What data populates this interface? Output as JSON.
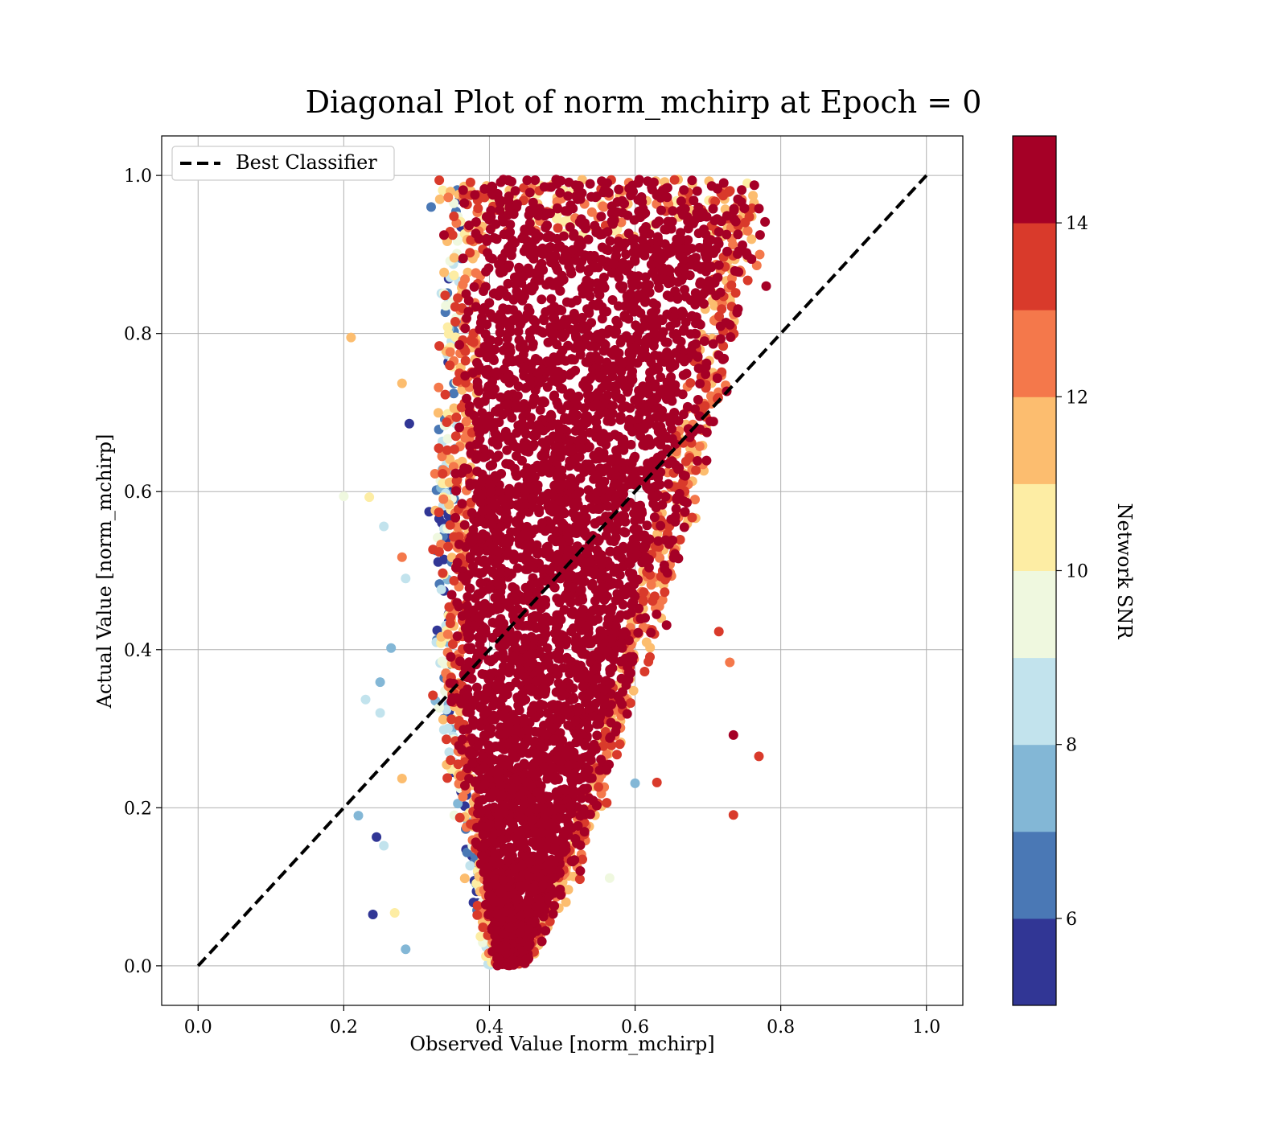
{
  "chart_data": {
    "type": "scatter",
    "title": "Diagonal Plot of norm_mchirp at Epoch = 0",
    "xlabel": "Observed Value [norm_mchirp]",
    "ylabel": "Actual Value [norm_mchirp]",
    "xlim": [
      -0.05,
      1.05
    ],
    "ylim": [
      -0.05,
      1.05
    ],
    "x_ticks": [
      "0.0",
      "0.2",
      "0.4",
      "0.6",
      "0.8",
      "1.0"
    ],
    "y_ticks": [
      "0.0",
      "0.2",
      "0.4",
      "0.6",
      "0.8",
      "1.0"
    ],
    "grid": true,
    "legend": {
      "placement": "top-left",
      "entries": [
        "Best Classifier"
      ]
    },
    "reference_line": {
      "name": "Best Classifier",
      "style": "dashed",
      "color": "#000000",
      "x": [
        0.0,
        1.0
      ],
      "y": [
        0.0,
        1.0
      ]
    },
    "colorbar": {
      "label": "Network SNR",
      "range": [
        5,
        15
      ],
      "ticks": [
        "6",
        "8",
        "10",
        "12",
        "14"
      ],
      "colormap": "RdYlBu_r (discrete, 10 levels)",
      "colors": [
        "#313695",
        "#4a78b5",
        "#83b7d6",
        "#c2e3ed",
        "#eff8df",
        "#fdeda4",
        "#fcbd6f",
        "#f4784b",
        "#d93a2b",
        "#a50026"
      ]
    },
    "point_cloud_summary": {
      "description_of_extent": "dense cloud",
      "x_range": [
        0.2,
        0.78
      ],
      "y_range": [
        0.0,
        1.0
      ]
    },
    "sample_points": [
      {
        "x": 0.32,
        "y": 0.96,
        "snr": 6.5
      },
      {
        "x": 0.21,
        "y": 0.795,
        "snr": 11.5
      },
      {
        "x": 0.28,
        "y": 0.737,
        "snr": 11.5
      },
      {
        "x": 0.29,
        "y": 0.686,
        "snr": 5.5
      },
      {
        "x": 0.2,
        "y": 0.594,
        "snr": 9.5
      },
      {
        "x": 0.235,
        "y": 0.593,
        "snr": 10.5
      },
      {
        "x": 0.255,
        "y": 0.556,
        "snr": 8.5
      },
      {
        "x": 0.28,
        "y": 0.517,
        "snr": 12.5
      },
      {
        "x": 0.285,
        "y": 0.49,
        "snr": 8.5
      },
      {
        "x": 0.265,
        "y": 0.402,
        "snr": 7.5
      },
      {
        "x": 0.25,
        "y": 0.359,
        "snr": 7.5
      },
      {
        "x": 0.23,
        "y": 0.337,
        "snr": 8.5
      },
      {
        "x": 0.25,
        "y": 0.32,
        "snr": 8.5
      },
      {
        "x": 0.28,
        "y": 0.237,
        "snr": 11.5
      },
      {
        "x": 0.22,
        "y": 0.19,
        "snr": 7.5
      },
      {
        "x": 0.245,
        "y": 0.163,
        "snr": 5.5
      },
      {
        "x": 0.255,
        "y": 0.152,
        "snr": 8.5
      },
      {
        "x": 0.24,
        "y": 0.065,
        "snr": 5.5
      },
      {
        "x": 0.27,
        "y": 0.067,
        "snr": 10.5
      },
      {
        "x": 0.285,
        "y": 0.021,
        "snr": 7.5
      },
      {
        "x": 0.735,
        "y": 0.292,
        "snr": 14.5
      },
      {
        "x": 0.77,
        "y": 0.265,
        "snr": 13.5
      },
      {
        "x": 0.735,
        "y": 0.191,
        "snr": 13.5
      },
      {
        "x": 0.73,
        "y": 0.384,
        "snr": 12.5
      },
      {
        "x": 0.715,
        "y": 0.423,
        "snr": 13.5
      },
      {
        "x": 0.78,
        "y": 0.86,
        "snr": 14.5
      },
      {
        "x": 0.77,
        "y": 0.958,
        "snr": 14.5
      },
      {
        "x": 0.565,
        "y": 0.111,
        "snr": 9.5
      },
      {
        "x": 0.6,
        "y": 0.231,
        "snr": 7.5
      },
      {
        "x": 0.63,
        "y": 0.232,
        "snr": 13.5
      }
    ]
  }
}
